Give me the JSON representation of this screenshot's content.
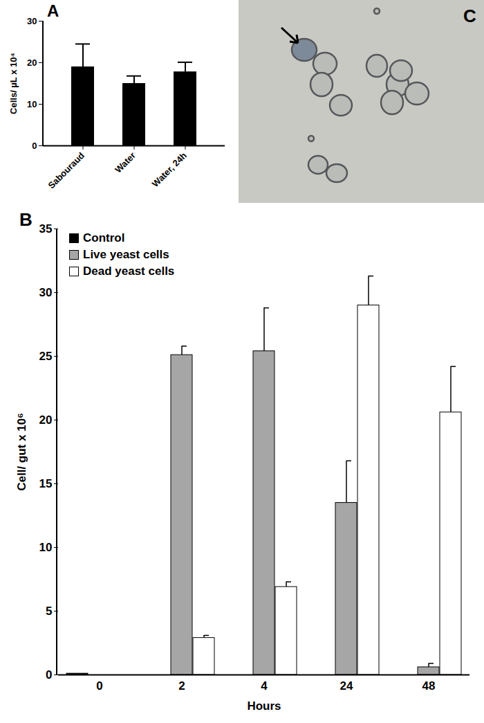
{
  "chart_data": [
    {
      "type": "bar",
      "title": "A",
      "categories": [
        "Sabouraud",
        "Water",
        "Water, 24h"
      ],
      "values": [
        19,
        15,
        17.8
      ],
      "errors": [
        5.5,
        1.8,
        2.3
      ],
      "color": "#000000",
      "y_label": "Cells/ µL x 10⁴",
      "ylim": [
        0,
        30
      ],
      "yticks": [
        0,
        10,
        20,
        30
      ],
      "grid": false
    },
    {
      "type": "image",
      "title": "C"
    },
    {
      "type": "bar",
      "title": "B",
      "categories": [
        0,
        2,
        4,
        24,
        48
      ],
      "x_label": "Hours",
      "y_label": "Cell/ gut x 10⁶",
      "ylim": [
        0,
        35
      ],
      "yticks": [
        0,
        5,
        10,
        15,
        20,
        25,
        30,
        35
      ],
      "grid": false,
      "legend": "top-left",
      "series": [
        {
          "name": "Control",
          "color": "#000000",
          "values": [
            0.1,
            null,
            null,
            null,
            null
          ],
          "errors": [
            null,
            null,
            null,
            null,
            null
          ]
        },
        {
          "name": "Live yeast cells",
          "color": "#a6a6a6",
          "values": [
            null,
            25.1,
            25.4,
            13.5,
            0.6
          ],
          "errors": [
            null,
            0.7,
            3.4,
            3.3,
            0.3
          ]
        },
        {
          "name": "Dead yeast cells",
          "color": "#ffffff",
          "values": [
            null,
            2.9,
            6.9,
            29,
            20.6
          ],
          "errors": [
            null,
            0.2,
            0.4,
            2.3,
            3.6
          ]
        }
      ]
    }
  ]
}
